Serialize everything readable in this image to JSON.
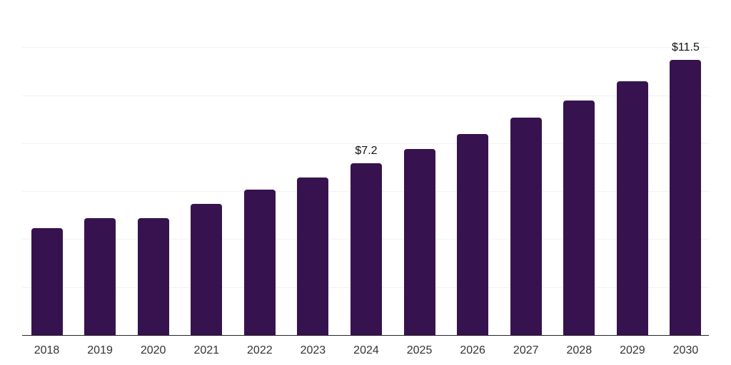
{
  "chart_data": {
    "type": "bar",
    "title": "",
    "categories": [
      "2018",
      "2019",
      "2020",
      "2021",
      "2022",
      "2023",
      "2024",
      "2025",
      "2026",
      "2027",
      "2028",
      "2029",
      "2030"
    ],
    "values": [
      4.5,
      4.9,
      4.9,
      5.5,
      6.1,
      6.6,
      7.2,
      7.8,
      8.4,
      9.1,
      9.8,
      10.6,
      11.5
    ],
    "point_labels": [
      "",
      "",
      "",
      "",
      "",
      "",
      "$7.2",
      "",
      "",
      "",
      "",
      "",
      "$11.5"
    ],
    "value_prefix": "$",
    "xlabel": "",
    "ylabel": "",
    "ylim": [
      0,
      14
    ],
    "gridline_step": 2,
    "grid": true,
    "legend_position": "none",
    "colors": {
      "bar": "#36134E",
      "gridline": "#F2F2F2",
      "axis_line": "#262626",
      "data_label": "#111111",
      "tick_label": "#333333",
      "background": "#FFFFFF"
    }
  }
}
